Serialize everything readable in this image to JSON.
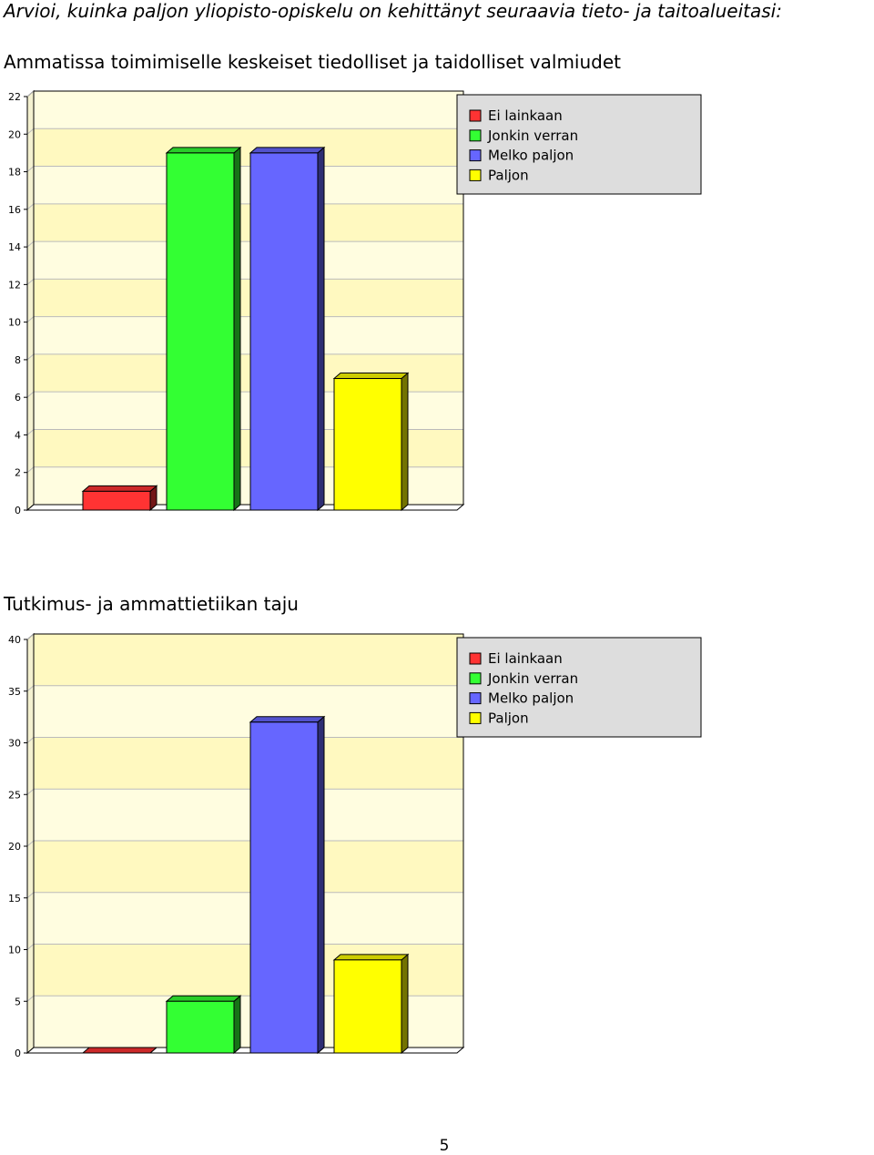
{
  "page": {
    "title": "Arvioi, kuinka paljon yliopisto-opiskelu on kehittänyt seuraavia tieto- ja taitoalueitasi:",
    "page_number": "5"
  },
  "legend": {
    "entries": [
      {
        "label": "Ei lainkaan",
        "color": "#ff3333"
      },
      {
        "label": "Jonkin verran",
        "color": "#33ff33"
      },
      {
        "label": "Melko paljon",
        "color": "#6666ff"
      },
      {
        "label": "Paljon",
        "color": "#ffff00"
      }
    ]
  },
  "colors": {
    "plot_background_light": "#fffde0",
    "plot_background_dark": "#fff9c0",
    "legend_background": "#dddddd"
  },
  "chart_data": [
    {
      "type": "bar",
      "title": "Ammatissa toimimiselle keskeiset tiedolliset ja taidolliset valmiudet",
      "categories": [
        "Ei lainkaan",
        "Jonkin verran",
        "Melko paljon",
        "Paljon"
      ],
      "values": [
        1,
        19,
        19,
        7
      ],
      "ylim": [
        0,
        22
      ],
      "yticks": [
        0,
        2,
        4,
        6,
        8,
        10,
        12,
        14,
        16,
        18,
        20,
        22
      ],
      "grid": true,
      "legend_position": "top-right",
      "style": "3d"
    },
    {
      "type": "bar",
      "title": "Tutkimus- ja ammattietiikan taju",
      "categories": [
        "Ei lainkaan",
        "Jonkin verran",
        "Melko paljon",
        "Paljon"
      ],
      "values": [
        0,
        5,
        32,
        9
      ],
      "ylim": [
        0,
        40
      ],
      "yticks": [
        0,
        5,
        10,
        15,
        20,
        25,
        30,
        35,
        40
      ],
      "grid": true,
      "legend_position": "top-right",
      "style": "3d"
    }
  ]
}
